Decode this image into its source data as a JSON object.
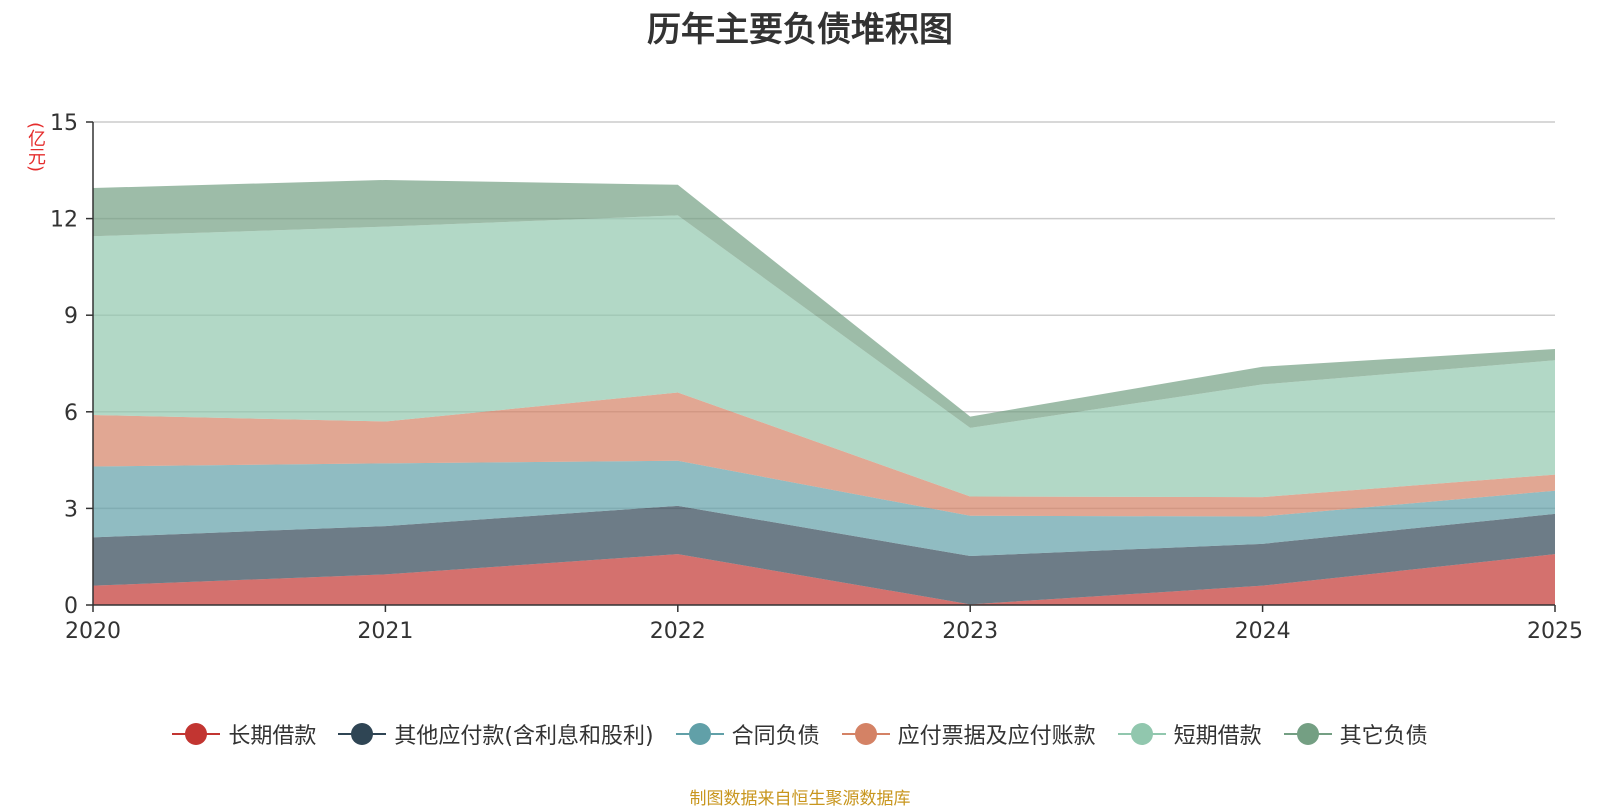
{
  "chart_data": {
    "type": "area",
    "stacked": true,
    "title": "历年主要负债堆积图",
    "ylabel": "(亿元)",
    "source_note": "制图数据来自恒生聚源数据库",
    "x": [
      "2020",
      "2021",
      "2022",
      "2023",
      "2024",
      "2025"
    ],
    "ylim": [
      0,
      15
    ],
    "yticks": [
      0,
      3,
      6,
      9,
      12,
      15
    ],
    "grid": true,
    "legend_position": "bottom",
    "series": [
      {
        "name": "长期借款",
        "color": "#c23531",
        "values": [
          0.6,
          0.95,
          1.58,
          0.02,
          0.6,
          1.58
        ]
      },
      {
        "name": "其他应付款(含利息和股利)",
        "color": "#2f4554",
        "values": [
          1.5,
          1.5,
          1.5,
          1.5,
          1.3,
          1.25
        ]
      },
      {
        "name": "合同负债",
        "color": "#61a0a8",
        "values": [
          2.2,
          1.95,
          1.4,
          1.25,
          0.85,
          0.72
        ]
      },
      {
        "name": "应付票据及应付账款",
        "color": "#d48265",
        "values": [
          1.6,
          1.3,
          2.12,
          0.6,
          0.6,
          0.5
        ]
      },
      {
        "name": "短期借款",
        "color": "#91c7ae",
        "values": [
          5.55,
          6.05,
          5.5,
          2.13,
          3.5,
          3.55
        ]
      },
      {
        "name": "其它负债",
        "color": "#749f83",
        "values": [
          1.5,
          1.45,
          0.95,
          0.35,
          0.55,
          0.35
        ]
      }
    ]
  }
}
